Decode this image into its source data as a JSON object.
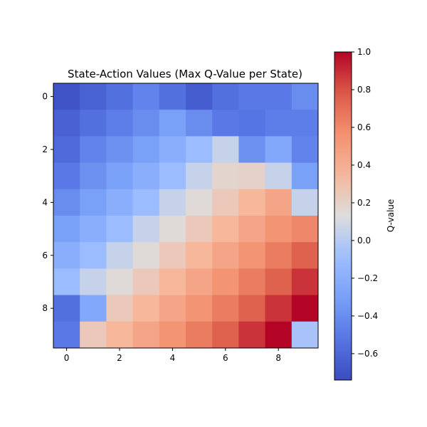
{
  "chart_data": {
    "type": "heatmap",
    "title": "State-Action Values (Max Q-Value per State)",
    "xlabel": "",
    "ylabel": "",
    "colorbar_label": "Q-value",
    "colormap": "coolwarm",
    "vmin": -0.74,
    "vmax": 1.0,
    "x_ticks": [
      "0",
      "2",
      "4",
      "6",
      "8"
    ],
    "y_ticks": [
      "0",
      "2",
      "4",
      "6",
      "8"
    ],
    "colorbar_ticks": [
      "1.0",
      "0.8",
      "0.6",
      "0.4",
      "0.2",
      "0.0",
      "−0.2",
      "−0.4",
      "−0.6"
    ],
    "colorbar_tick_values": [
      1.0,
      0.8,
      0.6,
      0.4,
      0.2,
      0.0,
      -0.2,
      -0.4,
      -0.6
    ],
    "grid": false,
    "values": [
      [
        -0.7,
        -0.62,
        -0.55,
        -0.45,
        -0.55,
        -0.65,
        -0.55,
        -0.5,
        -0.5,
        -0.4
      ],
      [
        -0.63,
        -0.55,
        -0.48,
        -0.4,
        -0.3,
        -0.4,
        -0.5,
        -0.52,
        -0.48,
        -0.48
      ],
      [
        -0.58,
        -0.45,
        -0.38,
        -0.3,
        -0.2,
        -0.1,
        0.05,
        -0.38,
        -0.25,
        -0.45
      ],
      [
        -0.5,
        -0.38,
        -0.3,
        -0.2,
        -0.1,
        0.05,
        0.18,
        0.2,
        0.05,
        -0.3
      ],
      [
        -0.4,
        -0.3,
        -0.2,
        -0.1,
        0.05,
        0.15,
        0.25,
        0.35,
        0.45,
        0.05
      ],
      [
        -0.3,
        -0.2,
        -0.1,
        0.05,
        0.15,
        0.25,
        0.35,
        0.45,
        0.55,
        0.6
      ],
      [
        -0.2,
        -0.1,
        0.05,
        0.15,
        0.25,
        0.35,
        0.45,
        0.55,
        0.65,
        0.75
      ],
      [
        -0.1,
        0.05,
        0.15,
        0.25,
        0.35,
        0.45,
        0.55,
        0.65,
        0.75,
        0.88
      ],
      [
        -0.55,
        -0.25,
        0.25,
        0.35,
        0.45,
        0.55,
        0.65,
        0.75,
        0.88,
        1.0
      ],
      [
        -0.5,
        0.25,
        0.35,
        0.45,
        0.55,
        0.65,
        0.75,
        0.88,
        1.0,
        -0.05
      ]
    ]
  }
}
